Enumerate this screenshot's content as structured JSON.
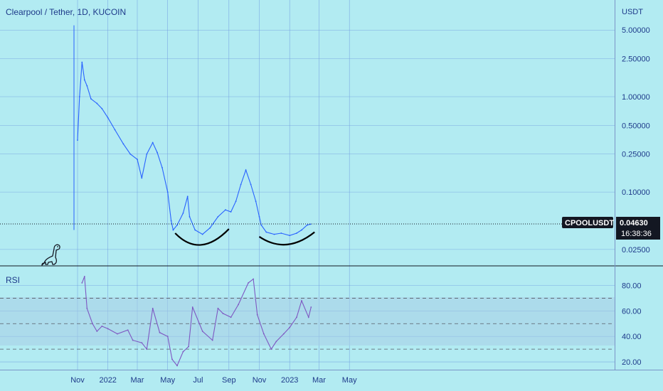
{
  "header": {
    "title": "Clearpool / Tether, 1D, KUCOIN"
  },
  "colors": {
    "background": "#b2ebf2",
    "grid": "#6f9be0",
    "price_line": "#2962ff",
    "rsi_line": "#7e57c2",
    "rsi_band": "#a8cde6",
    "label_dark": "#131722",
    "text": "#1e3a8a"
  },
  "chart_data": [
    {
      "type": "line",
      "title": "Clearpool / Tether, 1D, KUCOIN",
      "currency_label": "USDT",
      "scale": "log",
      "ylim": [
        0.018,
        9
      ],
      "y_ticks": [
        "5.00000",
        "2.50000",
        "1.00000",
        "0.50000",
        "0.25000",
        "0.10000",
        "0.02500"
      ],
      "y_tick_values": [
        5.0,
        2.5,
        1.0,
        0.5,
        0.25,
        0.1,
        0.025
      ],
      "x_ticks": [
        "Nov",
        "2022",
        "Mar",
        "May",
        "Jul",
        "Sep",
        "Nov",
        "2023",
        "Mar",
        "May"
      ],
      "x_tick_dates": [
        "2021-11-01",
        "2022-01-01",
        "2022-03-01",
        "2022-05-01",
        "2022-07-01",
        "2022-09-01",
        "2022-11-01",
        "2023-01-01",
        "2023-03-01",
        "2023-05-01"
      ],
      "series": [
        {
          "x": [
            "2021-11-01",
            "2021-11-05",
            "2021-11-10",
            "2021-11-15",
            "2021-11-20",
            "2021-11-28",
            "2021-12-10",
            "2021-12-20",
            "2022-01-01",
            "2022-01-15",
            "2022-02-01",
            "2022-02-15",
            "2022-03-01",
            "2022-03-10",
            "2022-03-20",
            "2022-04-01",
            "2022-04-10",
            "2022-04-20",
            "2022-05-01",
            "2022-05-08",
            "2022-05-12",
            "2022-05-20",
            "2022-06-01",
            "2022-06-10",
            "2022-06-14",
            "2022-06-25",
            "2022-07-10",
            "2022-07-25",
            "2022-08-10",
            "2022-08-25",
            "2022-09-05",
            "2022-09-15",
            "2022-09-25",
            "2022-10-05",
            "2022-10-15",
            "2022-10-25",
            "2022-11-01",
            "2022-11-05",
            "2022-11-15",
            "2022-12-01",
            "2022-12-15",
            "2023-01-01",
            "2023-01-15",
            "2023-01-25",
            "2023-02-05",
            "2023-02-12"
          ],
          "values": [
            0.35,
            1.0,
            2.3,
            1.5,
            1.3,
            0.95,
            0.85,
            0.75,
            0.6,
            0.45,
            0.32,
            0.25,
            0.22,
            0.14,
            0.25,
            0.33,
            0.26,
            0.18,
            0.1,
            0.05,
            0.04,
            0.045,
            0.06,
            0.09,
            0.055,
            0.04,
            0.036,
            0.042,
            0.055,
            0.065,
            0.062,
            0.08,
            0.12,
            0.17,
            0.12,
            0.08,
            0.055,
            0.045,
            0.038,
            0.036,
            0.037,
            0.035,
            0.037,
            0.04,
            0.045,
            0.046
          ]
        }
      ],
      "last_price": 0.0463,
      "last_price_label": "0.04630",
      "symbol_label": "CPOOLUSDT",
      "countdown": "16:38:36",
      "annotations": [
        "rounded bottom arc (May–Sep 2022)",
        "rounded bottom arc (Nov 2022–Feb 2023)"
      ]
    },
    {
      "type": "line",
      "title": "RSI",
      "ylim": [
        15,
        92
      ],
      "y_ticks": [
        "80.00",
        "60.00",
        "40.00",
        "20.00"
      ],
      "y_tick_values": [
        80,
        60,
        40,
        20
      ],
      "bands": [
        30,
        50,
        70
      ],
      "x": [
        "2021-11-10",
        "2021-11-15",
        "2021-11-20",
        "2021-12-01",
        "2021-12-10",
        "2021-12-20",
        "2022-01-01",
        "2022-01-20",
        "2022-02-10",
        "2022-02-20",
        "2022-03-10",
        "2022-03-20",
        "2022-04-01",
        "2022-04-15",
        "2022-05-01",
        "2022-05-10",
        "2022-05-20",
        "2022-06-01",
        "2022-06-12",
        "2022-06-20",
        "2022-07-10",
        "2022-07-30",
        "2022-08-10",
        "2022-08-20",
        "2022-09-05",
        "2022-09-20",
        "2022-10-10",
        "2022-10-20",
        "2022-10-28",
        "2022-11-10",
        "2022-11-25",
        "2022-12-05",
        "2022-12-20",
        "2023-01-01",
        "2023-01-15",
        "2023-01-25",
        "2023-02-08",
        "2023-02-13"
      ],
      "values": [
        82,
        87,
        62,
        50,
        44,
        48,
        46,
        42,
        45,
        37,
        35,
        30,
        62,
        43,
        40,
        22,
        17,
        28,
        32,
        63,
        44,
        37,
        62,
        58,
        55,
        65,
        82,
        85,
        57,
        42,
        30,
        36,
        42,
        47,
        55,
        68,
        55,
        63
      ]
    }
  ]
}
